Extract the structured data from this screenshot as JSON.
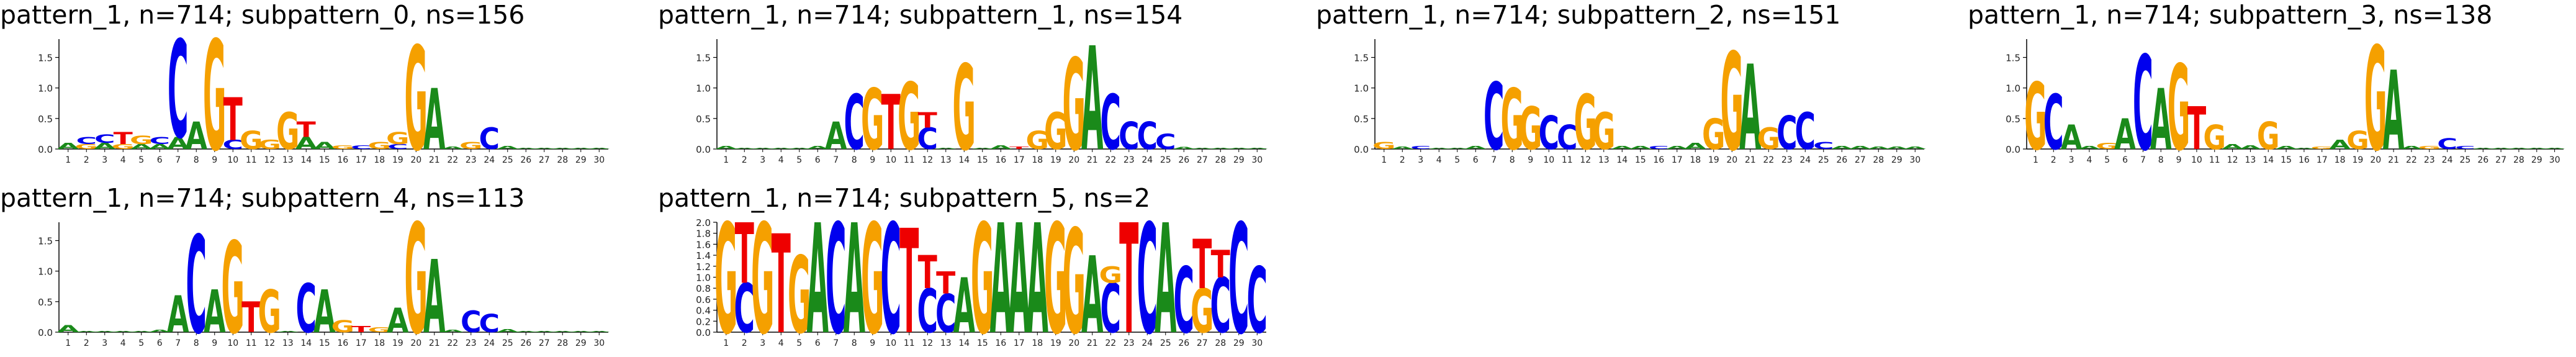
{
  "colors": {
    "A": "#1a8a1a",
    "C": "#0000ee",
    "G": "#f5a000",
    "T": "#ee0000",
    "axis": "#000000"
  },
  "chart_data": [
    {
      "type": "sequence-logo",
      "title": "pattern_1, n=714; subpattern_0, ns=156",
      "ylim": [
        0,
        1.8
      ],
      "yticks": [
        "0.0",
        "0.5",
        "1.0",
        "1.5"
      ],
      "positions": [
        1,
        2,
        3,
        4,
        5,
        6,
        7,
        8,
        9,
        10,
        11,
        12,
        13,
        14,
        15,
        16,
        17,
        18,
        19,
        20,
        21,
        22,
        23,
        24,
        25,
        26,
        27,
        28,
        29,
        30
      ],
      "stacks": [
        [
          [
            "A",
            0.1
          ]
        ],
        [
          [
            "G",
            0.08
          ],
          [
            "C",
            0.12
          ]
        ],
        [
          [
            "A",
            0.1
          ],
          [
            "C",
            0.14
          ]
        ],
        [
          [
            "G",
            0.08
          ],
          [
            "T",
            0.2
          ]
        ],
        [
          [
            "A",
            0.08
          ],
          [
            "G",
            0.14
          ]
        ],
        [
          [
            "A",
            0.08
          ],
          [
            "C",
            0.12
          ]
        ],
        [
          [
            "A",
            0.2
          ],
          [
            "C",
            1.6
          ]
        ],
        [
          [
            "A",
            0.45
          ]
        ],
        [
          [
            "G",
            1.8
          ]
        ],
        [
          [
            "C",
            0.15
          ],
          [
            "T",
            0.7
          ]
        ],
        [
          [
            "G",
            0.3
          ]
        ],
        [
          [
            "G",
            0.15
          ]
        ],
        [
          [
            "G",
            0.6
          ]
        ],
        [
          [
            "A",
            0.2
          ],
          [
            "T",
            0.25
          ]
        ],
        [
          [
            "A",
            0.12
          ]
        ],
        [
          [
            "G",
            0.06
          ]
        ],
        [
          [
            "C",
            0.06
          ]
        ],
        [
          [
            "G",
            0.12
          ]
        ],
        [
          [
            "C",
            0.08
          ],
          [
            "G",
            0.2
          ]
        ],
        [
          [
            "G",
            1.7
          ]
        ],
        [
          [
            "A",
            1.0
          ]
        ],
        [
          [
            "A",
            0.04
          ]
        ],
        [
          [
            "G",
            0.12
          ]
        ],
        [
          [
            "C",
            0.35
          ]
        ],
        [
          [
            "A",
            0.05
          ]
        ],
        [
          [
            "A",
            0.02
          ]
        ],
        [
          [
            "A",
            0.02
          ]
        ],
        [
          [
            "A",
            0.02
          ]
        ],
        [
          [
            "A",
            0.02
          ]
        ],
        [
          [
            "A",
            0.02
          ]
        ]
      ]
    },
    {
      "type": "sequence-logo",
      "title": "pattern_1, n=714; subpattern_1, ns=154",
      "ylim": [
        0,
        1.8
      ],
      "yticks": [
        "0.0",
        "0.5",
        "1.0",
        "1.5"
      ],
      "positions": [
        1,
        2,
        3,
        4,
        5,
        6,
        7,
        8,
        9,
        10,
        11,
        12,
        13,
        14,
        15,
        16,
        17,
        18,
        19,
        20,
        21,
        22,
        23,
        24,
        25,
        26,
        27,
        28,
        29,
        30
      ],
      "stacks": [
        [
          [
            "A",
            0.05
          ]
        ],
        [
          [
            "A",
            0.02
          ]
        ],
        [
          [
            "A",
            0.02
          ]
        ],
        [
          [
            "A",
            0.02
          ]
        ],
        [
          [
            "A",
            0.02
          ]
        ],
        [
          [
            "A",
            0.05
          ]
        ],
        [
          [
            "A",
            0.45
          ]
        ],
        [
          [
            "C",
            0.9
          ]
        ],
        [
          [
            "G",
            1.0
          ]
        ],
        [
          [
            "T",
            0.9
          ]
        ],
        [
          [
            "G",
            1.1
          ]
        ],
        [
          [
            "C",
            0.35
          ],
          [
            "T",
            0.25
          ]
        ],
        [
          [
            "A",
            0.02
          ]
        ],
        [
          [
            "G",
            1.4
          ]
        ],
        [
          [
            "A",
            0.02
          ]
        ],
        [
          [
            "A",
            0.06
          ]
        ],
        [
          [
            "T",
            0.04
          ]
        ],
        [
          [
            "G",
            0.3
          ]
        ],
        [
          [
            "G",
            0.6
          ]
        ],
        [
          [
            "G",
            1.5
          ]
        ],
        [
          [
            "A",
            1.7
          ]
        ],
        [
          [
            "C",
            0.9
          ]
        ],
        [
          [
            "C",
            0.45
          ]
        ],
        [
          [
            "C",
            0.45
          ]
        ],
        [
          [
            "C",
            0.25
          ]
        ],
        [
          [
            "A",
            0.03
          ]
        ],
        [
          [
            "A",
            0.02
          ]
        ],
        [
          [
            "A",
            0.02
          ]
        ],
        [
          [
            "A",
            0.02
          ]
        ],
        [
          [
            "A",
            0.02
          ]
        ]
      ]
    },
    {
      "type": "sequence-logo",
      "title": "pattern_1, n=714; subpattern_2, ns=151",
      "ylim": [
        0,
        1.8
      ],
      "yticks": [
        "0.0",
        "0.5",
        "1.0",
        "1.5"
      ],
      "positions": [
        1,
        2,
        3,
        4,
        5,
        6,
        7,
        8,
        9,
        10,
        11,
        12,
        13,
        14,
        15,
        16,
        17,
        18,
        19,
        20,
        21,
        22,
        23,
        24,
        25,
        26,
        27,
        28,
        29,
        30
      ],
      "stacks": [
        [
          [
            "G",
            0.12
          ]
        ],
        [
          [
            "A",
            0.04
          ]
        ],
        [
          [
            "C",
            0.05
          ]
        ],
        [
          [
            "A",
            0.02
          ]
        ],
        [
          [
            "A",
            0.02
          ]
        ],
        [
          [
            "A",
            0.05
          ]
        ],
        [
          [
            "C",
            1.1
          ]
        ],
        [
          [
            "G",
            1.0
          ]
        ],
        [
          [
            "G",
            0.7
          ]
        ],
        [
          [
            "C",
            0.55
          ]
        ],
        [
          [
            "C",
            0.4
          ]
        ],
        [
          [
            "G",
            0.9
          ]
        ],
        [
          [
            "G",
            0.6
          ]
        ],
        [
          [
            "A",
            0.05
          ]
        ],
        [
          [
            "A",
            0.05
          ]
        ],
        [
          [
            "C",
            0.05
          ]
        ],
        [
          [
            "A",
            0.05
          ]
        ],
        [
          [
            "A",
            0.1
          ]
        ],
        [
          [
            "G",
            0.5
          ]
        ],
        [
          [
            "G",
            1.6
          ]
        ],
        [
          [
            "A",
            1.4
          ]
        ],
        [
          [
            "G",
            0.35
          ]
        ],
        [
          [
            "C",
            0.55
          ]
        ],
        [
          [
            "C",
            0.6
          ]
        ],
        [
          [
            "C",
            0.12
          ]
        ],
        [
          [
            "A",
            0.05
          ]
        ],
        [
          [
            "A",
            0.05
          ]
        ],
        [
          [
            "A",
            0.04
          ]
        ],
        [
          [
            "A",
            0.04
          ]
        ],
        [
          [
            "A",
            0.04
          ]
        ]
      ]
    },
    {
      "type": "sequence-logo",
      "title": "pattern_1, n=714; subpattern_3, ns=138",
      "ylim": [
        0,
        1.8
      ],
      "yticks": [
        "0.0",
        "0.5",
        "1.0",
        "1.5"
      ],
      "positions": [
        1,
        2,
        3,
        4,
        5,
        6,
        7,
        8,
        9,
        10,
        11,
        12,
        13,
        14,
        15,
        16,
        17,
        18,
        19,
        20,
        21,
        22,
        23,
        24,
        25,
        26,
        27,
        28,
        29,
        30
      ],
      "stacks": [
        [
          [
            "G",
            1.1
          ]
        ],
        [
          [
            "C",
            0.9
          ]
        ],
        [
          [
            "A",
            0.4
          ]
        ],
        [
          [
            "A",
            0.05
          ]
        ],
        [
          [
            "G",
            0.1
          ]
        ],
        [
          [
            "A",
            0.5
          ]
        ],
        [
          [
            "C",
            1.55
          ]
        ],
        [
          [
            "A",
            1.0
          ]
        ],
        [
          [
            "G",
            1.4
          ]
        ],
        [
          [
            "T",
            0.7
          ]
        ],
        [
          [
            "G",
            0.4
          ]
        ],
        [
          [
            "A",
            0.08
          ]
        ],
        [
          [
            "A",
            0.06
          ]
        ],
        [
          [
            "G",
            0.45
          ]
        ],
        [
          [
            "A",
            0.05
          ]
        ],
        [
          [
            "A",
            0.02
          ]
        ],
        [
          [
            "G",
            0.04
          ]
        ],
        [
          [
            "A",
            0.15
          ]
        ],
        [
          [
            "G",
            0.3
          ]
        ],
        [
          [
            "G",
            1.7
          ]
        ],
        [
          [
            "A",
            1.3
          ]
        ],
        [
          [
            "A",
            0.05
          ]
        ],
        [
          [
            "G",
            0.05
          ]
        ],
        [
          [
            "C",
            0.18
          ]
        ],
        [
          [
            "C",
            0.05
          ]
        ],
        [
          [
            "A",
            0.02
          ]
        ],
        [
          [
            "A",
            0.02
          ]
        ],
        [
          [
            "A",
            0.02
          ]
        ],
        [
          [
            "A",
            0.02
          ]
        ],
        [
          [
            "A",
            0.02
          ]
        ]
      ]
    },
    {
      "type": "sequence-logo",
      "title": "pattern_1, n=714; subpattern_4, ns=113",
      "ylim": [
        0,
        1.8
      ],
      "yticks": [
        "0.0",
        "0.5",
        "1.0",
        "1.5"
      ],
      "positions": [
        1,
        2,
        3,
        4,
        5,
        6,
        7,
        8,
        9,
        10,
        11,
        12,
        13,
        14,
        15,
        16,
        17,
        18,
        19,
        20,
        21,
        22,
        23,
        24,
        25,
        26,
        27,
        28,
        29,
        30
      ],
      "stacks": [
        [
          [
            "A",
            0.12
          ]
        ],
        [
          [
            "A",
            0.02
          ]
        ],
        [
          [
            "A",
            0.02
          ]
        ],
        [
          [
            "A",
            0.02
          ]
        ],
        [
          [
            "A",
            0.02
          ]
        ],
        [
          [
            "A",
            0.04
          ]
        ],
        [
          [
            "A",
            0.6
          ]
        ],
        [
          [
            "C",
            1.6
          ]
        ],
        [
          [
            "A",
            0.7
          ]
        ],
        [
          [
            "G",
            1.5
          ]
        ],
        [
          [
            "T",
            0.5
          ]
        ],
        [
          [
            "G",
            0.7
          ]
        ],
        [
          [
            "A",
            0.02
          ]
        ],
        [
          [
            "C",
            0.8
          ]
        ],
        [
          [
            "A",
            0.7
          ]
        ],
        [
          [
            "G",
            0.2
          ]
        ],
        [
          [
            "T",
            0.1
          ]
        ],
        [
          [
            "G",
            0.08
          ]
        ],
        [
          [
            "A",
            0.4
          ]
        ],
        [
          [
            "G",
            1.8
          ]
        ],
        [
          [
            "A",
            1.2
          ]
        ],
        [
          [
            "A",
            0.04
          ]
        ],
        [
          [
            "C",
            0.35
          ]
        ],
        [
          [
            "C",
            0.3
          ]
        ],
        [
          [
            "A",
            0.05
          ]
        ],
        [
          [
            "A",
            0.02
          ]
        ],
        [
          [
            "A",
            0.02
          ]
        ],
        [
          [
            "A",
            0.02
          ]
        ],
        [
          [
            "A",
            0.02
          ]
        ],
        [
          [
            "A",
            0.02
          ]
        ]
      ]
    },
    {
      "type": "sequence-logo",
      "title": "pattern_1, n=714; subpattern_5, ns=2",
      "ylim": [
        0,
        2.0
      ],
      "yticks": [
        "0.0",
        "0.2",
        "0.4",
        "0.6",
        "0.8",
        "1.0",
        "1.2",
        "1.4",
        "1.6",
        "1.8",
        "2.0"
      ],
      "positions": [
        1,
        2,
        3,
        4,
        5,
        6,
        7,
        8,
        9,
        10,
        11,
        12,
        13,
        14,
        15,
        16,
        17,
        18,
        19,
        20,
        21,
        22,
        23,
        24,
        25,
        26,
        27,
        28,
        29,
        30
      ],
      "stacks": [
        [
          [
            "G",
            2.0
          ]
        ],
        [
          [
            "C",
            0.9
          ],
          [
            "T",
            1.1
          ]
        ],
        [
          [
            "G",
            2.0
          ]
        ],
        [
          [
            "T",
            1.8
          ]
        ],
        [
          [
            "G",
            1.4
          ]
        ],
        [
          [
            "A",
            2.0
          ]
        ],
        [
          [
            "C",
            2.0
          ]
        ],
        [
          [
            "A",
            2.0
          ]
        ],
        [
          [
            "G",
            2.0
          ]
        ],
        [
          [
            "C",
            2.0
          ]
        ],
        [
          [
            "T",
            1.9
          ]
        ],
        [
          [
            "C",
            0.8
          ],
          [
            "T",
            0.6
          ]
        ],
        [
          [
            "C",
            0.7
          ],
          [
            "T",
            0.4
          ]
        ],
        [
          [
            "A",
            1.0
          ]
        ],
        [
          [
            "G",
            2.0
          ]
        ],
        [
          [
            "A",
            2.0
          ]
        ],
        [
          [
            "A",
            2.0
          ]
        ],
        [
          [
            "A",
            2.0
          ]
        ],
        [
          [
            "G",
            2.0
          ]
        ],
        [
          [
            "G",
            1.9
          ]
        ],
        [
          [
            "A",
            1.4
          ]
        ],
        [
          [
            "C",
            0.9
          ],
          [
            "G",
            0.3
          ]
        ],
        [
          [
            "T",
            2.0
          ]
        ],
        [
          [
            "C",
            2.0
          ]
        ],
        [
          [
            "A",
            2.0
          ]
        ],
        [
          [
            "C",
            1.2
          ]
        ],
        [
          [
            "G",
            0.8
          ],
          [
            "T",
            0.9
          ]
        ],
        [
          [
            "C",
            1.0
          ],
          [
            "T",
            0.5
          ]
        ],
        [
          [
            "C",
            2.0
          ]
        ],
        [
          [
            "C",
            1.2
          ]
        ]
      ]
    }
  ]
}
